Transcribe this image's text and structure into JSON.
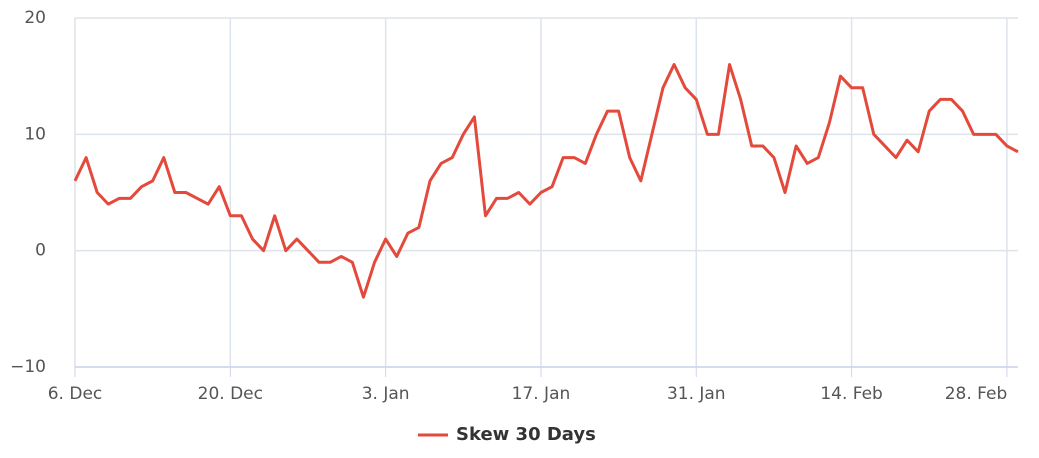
{
  "chart_data": {
    "type": "line",
    "categories": [
      "6. Dec",
      null,
      null,
      null,
      null,
      null,
      null,
      null,
      null,
      null,
      null,
      null,
      null,
      null,
      "20. Dec",
      null,
      null,
      null,
      null,
      null,
      null,
      null,
      null,
      null,
      null,
      null,
      null,
      null,
      "3. Jan",
      null,
      null,
      null,
      null,
      null,
      null,
      null,
      null,
      null,
      null,
      null,
      null,
      null,
      "17. Jan",
      null,
      null,
      null,
      null,
      null,
      null,
      null,
      null,
      null,
      null,
      null,
      null,
      null,
      "31. Jan",
      null,
      null,
      null,
      null,
      null,
      null,
      null,
      null,
      null,
      null,
      null,
      null,
      null,
      "14. Feb",
      null,
      null,
      null,
      null,
      null,
      null,
      null,
      null,
      null,
      null,
      null,
      null,
      null,
      "28. Feb",
      null
    ],
    "series": [
      {
        "name": "Skew 30 Days",
        "color": "#e34a3b",
        "values": [
          6,
          8,
          5,
          4,
          4.5,
          4.5,
          5.5,
          6,
          8,
          5,
          5,
          4.5,
          4,
          5.5,
          3,
          3,
          1,
          0,
          3,
          0,
          1,
          0,
          -1,
          -1,
          -0.5,
          -1,
          -4,
          -1,
          1,
          -0.5,
          1.5,
          2,
          6,
          7.5,
          8,
          10,
          11.5,
          3,
          4.5,
          4.5,
          5,
          4,
          5,
          5.5,
          8,
          8,
          7.5,
          10,
          12,
          12,
          8,
          6,
          10,
          14,
          16,
          14,
          13,
          10,
          10,
          16,
          13,
          9,
          9,
          8,
          5,
          9,
          7.5,
          8,
          11,
          15,
          14,
          14,
          10,
          9,
          8,
          9.5,
          8.5,
          12,
          13,
          13,
          12,
          10,
          10,
          10,
          9,
          8.5
        ]
      }
    ],
    "ylim": [
      -10,
      20
    ],
    "yticks": [
      {
        "value": -10,
        "label": "−10"
      },
      0,
      10,
      20
    ],
    "grid": true
  }
}
